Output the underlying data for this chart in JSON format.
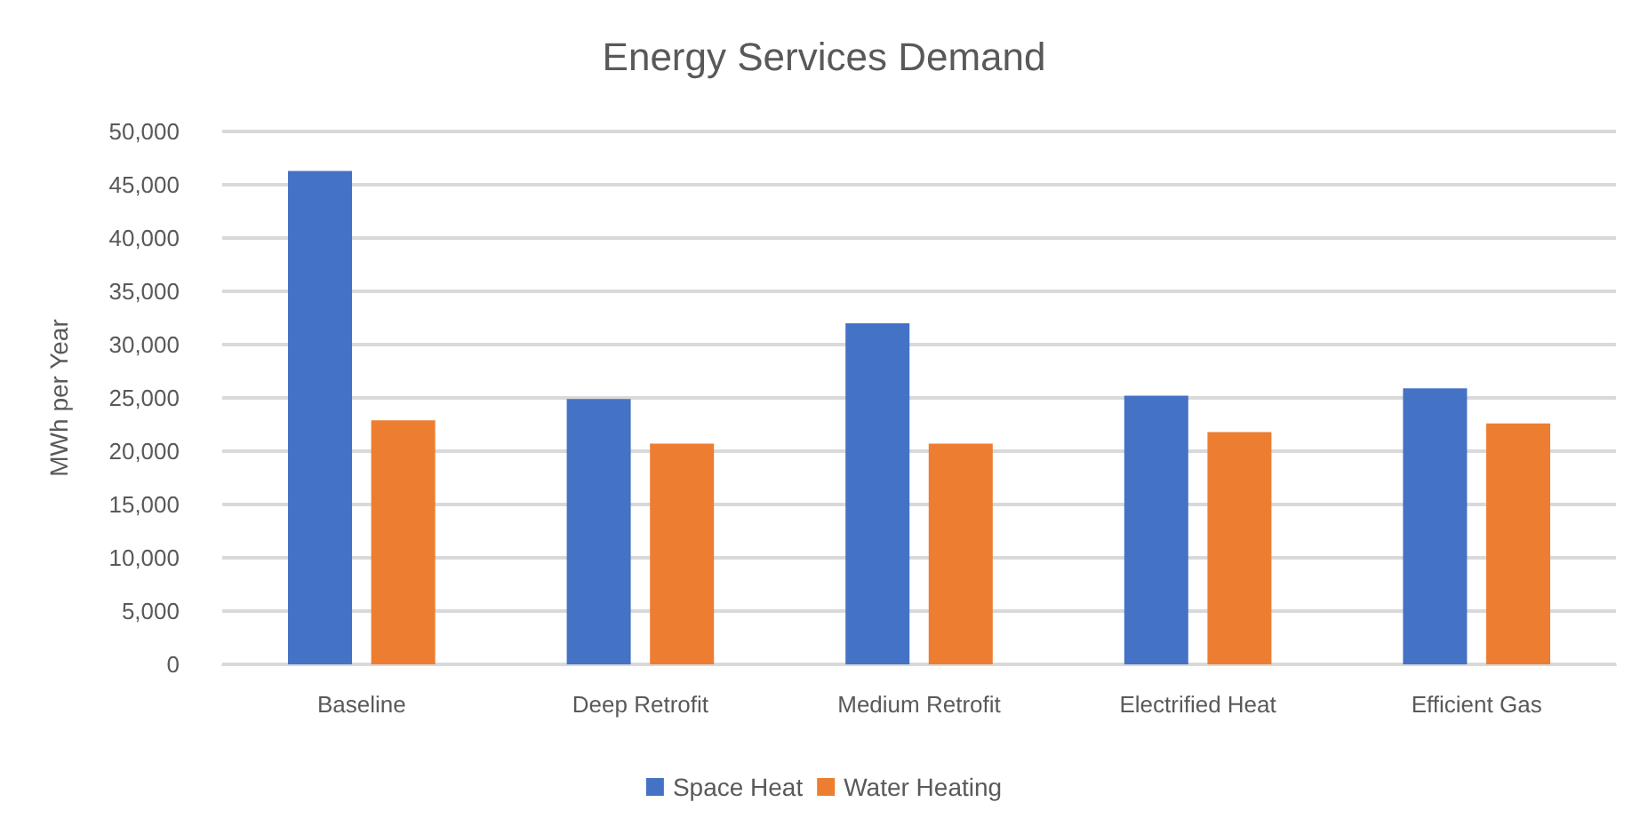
{
  "chart_data": {
    "type": "bar",
    "title": "Energy Services Demand",
    "ylabel": "MWh per Year",
    "categories": [
      "Baseline",
      "Deep Retrofit",
      "Medium Retrofit",
      "Electrified Heat",
      "Efficient Gas"
    ],
    "series": [
      {
        "name": "Space Heat",
        "color": "#4472c4",
        "values": [
          46300,
          24900,
          32000,
          25200,
          25900
        ]
      },
      {
        "name": "Water Heating",
        "color": "#ed7d31",
        "values": [
          22900,
          20700,
          20700,
          21800,
          22600
        ]
      }
    ],
    "ylim": [
      0,
      50000
    ],
    "yticks": [
      {
        "value": 0,
        "label": "0"
      },
      {
        "value": 5000,
        "label": "5,000"
      },
      {
        "value": 10000,
        "label": "10,000"
      },
      {
        "value": 15000,
        "label": "15,000"
      },
      {
        "value": 20000,
        "label": "20,000"
      },
      {
        "value": 25000,
        "label": "25,000"
      },
      {
        "value": 30000,
        "label": "30,000"
      },
      {
        "value": 35000,
        "label": "35,000"
      },
      {
        "value": 40000,
        "label": "40,000"
      },
      {
        "value": 45000,
        "label": "45,000"
      },
      {
        "value": 50000,
        "label": "50,000"
      }
    ],
    "grid": "y",
    "legend": "bottom"
  }
}
